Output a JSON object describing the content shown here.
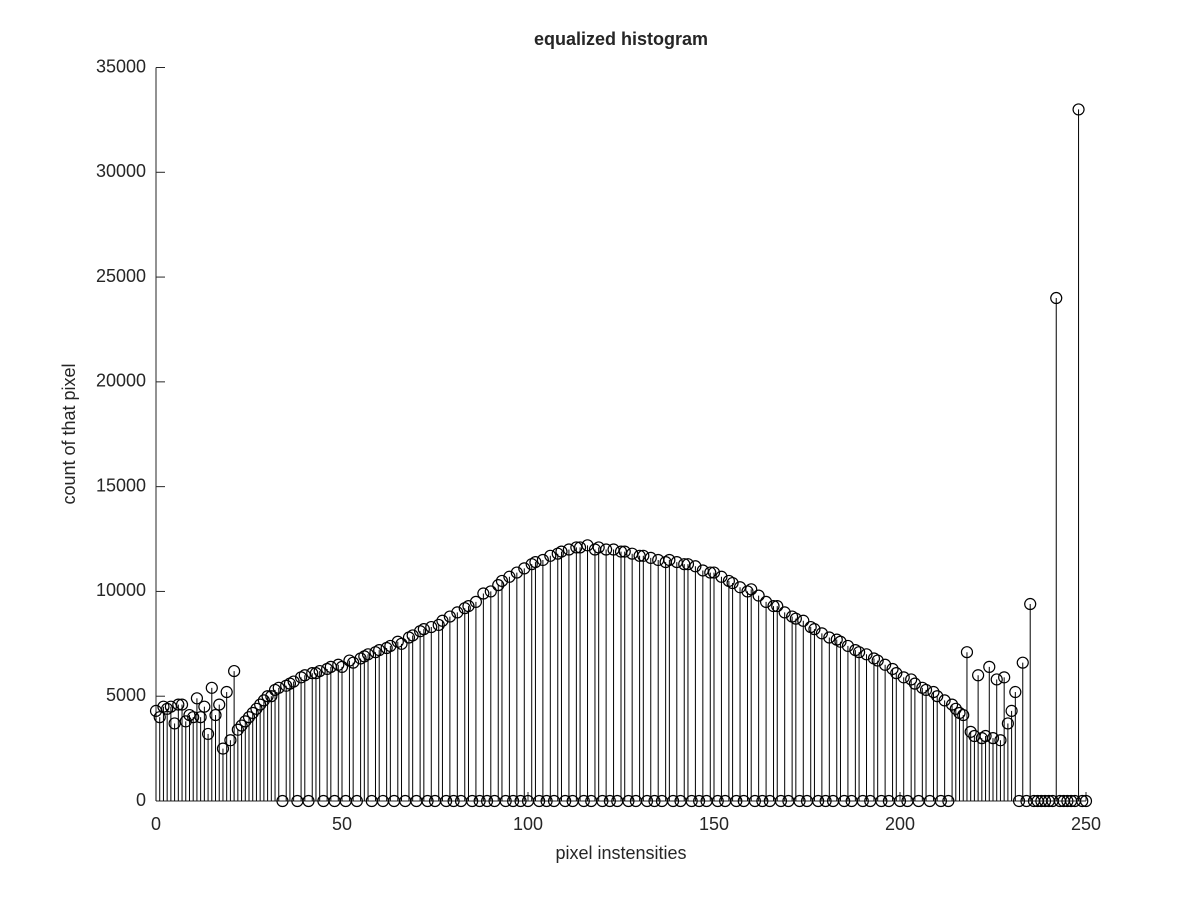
{
  "chart_data": {
    "type": "stem",
    "title": "equalized histogram",
    "x_label": "pixel instensities",
    "y_label": "count of that pixel",
    "x": [
      0,
      1,
      2,
      3,
      4,
      5,
      6,
      7,
      8,
      9,
      10,
      11,
      12,
      13,
      14,
      15,
      16,
      17,
      18,
      19,
      20,
      21,
      22,
      23,
      24,
      25,
      26,
      27,
      28,
      29,
      30,
      31,
      32,
      33,
      34,
      35,
      36,
      37,
      38,
      39,
      40,
      41,
      42,
      43,
      44,
      45,
      46,
      47,
      48,
      49,
      50,
      51,
      52,
      53,
      54,
      55,
      56,
      57,
      58,
      59,
      60,
      61,
      62,
      63,
      64,
      65,
      66,
      67,
      68,
      69,
      70,
      71,
      72,
      73,
      74,
      75,
      76,
      77,
      78,
      79,
      80,
      81,
      82,
      83,
      84,
      85,
      86,
      87,
      88,
      89,
      90,
      91,
      92,
      93,
      94,
      95,
      96,
      97,
      98,
      99,
      100,
      101,
      102,
      103,
      104,
      105,
      106,
      107,
      108,
      109,
      110,
      111,
      112,
      113,
      114,
      115,
      116,
      117,
      118,
      119,
      120,
      121,
      122,
      123,
      124,
      125,
      126,
      127,
      128,
      129,
      130,
      131,
      132,
      133,
      134,
      135,
      136,
      137,
      138,
      139,
      140,
      141,
      142,
      143,
      144,
      145,
      146,
      147,
      148,
      149,
      150,
      151,
      152,
      153,
      154,
      155,
      156,
      157,
      158,
      159,
      160,
      161,
      162,
      163,
      164,
      165,
      166,
      167,
      168,
      169,
      170,
      171,
      172,
      173,
      174,
      175,
      176,
      177,
      178,
      179,
      180,
      181,
      182,
      183,
      184,
      185,
      186,
      187,
      188,
      189,
      190,
      191,
      192,
      193,
      194,
      195,
      196,
      197,
      198,
      199,
      200,
      201,
      202,
      203,
      204,
      205,
      206,
      207,
      208,
      209,
      210,
      211,
      212,
      213,
      214,
      215,
      216,
      217,
      218,
      219,
      220,
      221,
      222,
      223,
      224,
      225,
      226,
      227,
      228,
      229,
      230,
      231,
      232,
      233,
      234,
      235,
      236,
      237,
      238,
      239,
      240,
      241,
      242,
      243,
      244,
      245,
      246,
      247,
      248,
      249,
      250
    ],
    "values": [
      4300,
      4000,
      4500,
      4400,
      4500,
      3700,
      4600,
      4600,
      3800,
      4100,
      4000,
      4900,
      4000,
      4500,
      3200,
      5400,
      4100,
      4600,
      2500,
      5200,
      2900,
      6200,
      3400,
      3600,
      3800,
      4000,
      4200,
      4400,
      4600,
      4800,
      5000,
      5000,
      5300,
      5400,
      0,
      5500,
      5600,
      5700,
      0,
      5900,
      6000,
      0,
      6100,
      6100,
      6200,
      0,
      6300,
      6400,
      0,
      6500,
      6400,
      0,
      6700,
      6600,
      0,
      6800,
      6900,
      7000,
      0,
      7100,
      7200,
      0,
      7300,
      7400,
      0,
      7600,
      7500,
      0,
      7800,
      7900,
      0,
      8100,
      8200,
      0,
      8300,
      0,
      8400,
      8600,
      0,
      8800,
      0,
      9000,
      0,
      9200,
      9300,
      0,
      9500,
      0,
      9900,
      0,
      10000,
      0,
      10300,
      10500,
      0,
      10700,
      0,
      10900,
      0,
      11100,
      0,
      11300,
      11400,
      0,
      11500,
      0,
      11700,
      0,
      11800,
      11900,
      0,
      12000,
      0,
      12100,
      12100,
      0,
      12200,
      0,
      12000,
      12100,
      0,
      12000,
      0,
      12000,
      0,
      11900,
      11900,
      0,
      11800,
      0,
      11700,
      11700,
      0,
      11600,
      0,
      11500,
      0,
      11400,
      11500,
      0,
      11400,
      0,
      11300,
      11300,
      0,
      11200,
      0,
      11000,
      0,
      10900,
      10900,
      0,
      10700,
      0,
      10500,
      10400,
      0,
      10200,
      0,
      10000,
      10100,
      0,
      9800,
      0,
      9500,
      0,
      9300,
      9300,
      0,
      9000,
      0,
      8800,
      8700,
      0,
      8600,
      0,
      8300,
      8200,
      0,
      8000,
      0,
      7800,
      0,
      7700,
      7600,
      0,
      7400,
      0,
      7200,
      7100,
      0,
      7000,
      0,
      6800,
      6700,
      0,
      6500,
      0,
      6300,
      6100,
      0,
      5900,
      0,
      5800,
      5600,
      0,
      5400,
      5300,
      0,
      5200,
      5000,
      0,
      4800,
      0,
      4600,
      4400,
      4200,
      4100,
      7100,
      3300,
      3100,
      6000,
      3000,
      3100,
      6400,
      3000,
      5800,
      2900,
      5900,
      3700,
      4300,
      5200,
      0,
      6600,
      0,
      9400,
      0,
      0,
      0,
      0,
      0,
      0,
      24000,
      0,
      0,
      0,
      0,
      0,
      33000,
      0,
      0
    ],
    "color": "#000000",
    "xlim": [
      0,
      250
    ],
    "xticks": [
      0,
      50,
      100,
      150,
      200,
      250
    ],
    "ylim": [
      0,
      35000
    ],
    "yticks": [
      0,
      5000,
      10000,
      15000,
      20000,
      25000,
      30000,
      35000
    ],
    "grid": false
  }
}
